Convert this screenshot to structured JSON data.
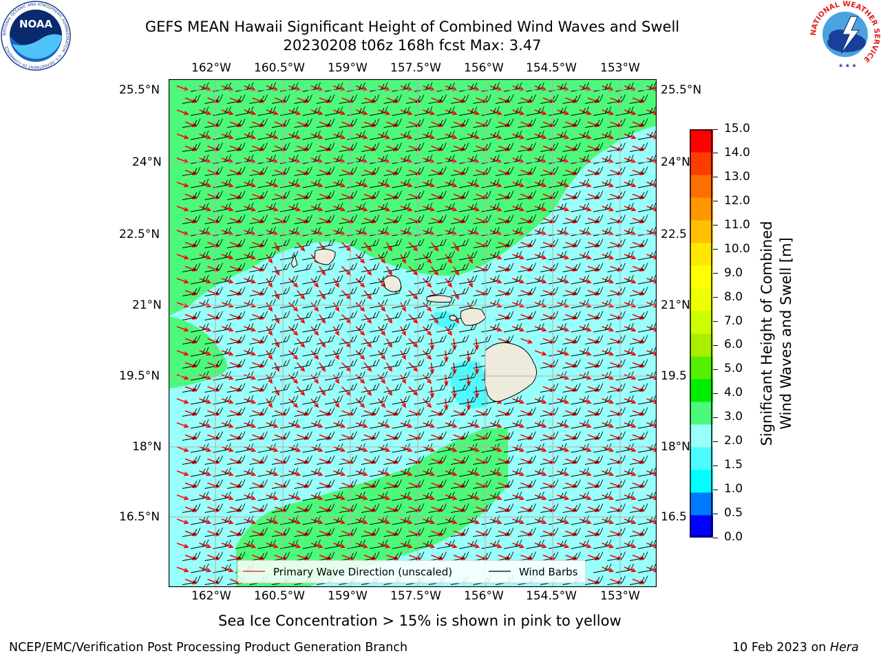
{
  "header": {
    "title_line1": "GEFS MEAN Hawaii Significant Height of Combined Wind Waves and Swell",
    "title_line2": "20230208 t06z 168h fcst   Max: 3.47"
  },
  "logos": {
    "left": {
      "name": "noaa-logo",
      "text": "NOAA",
      "ring": "NATIONAL OCEANIC AND ATMOSPHERIC ADMINISTRATION · U.S. DEPARTMENT OF COMMERCE"
    },
    "right": {
      "name": "nws-logo",
      "ring": "NATIONAL WEATHER SERVICE"
    }
  },
  "map": {
    "lon_labels": [
      "162°W",
      "160.5°W",
      "159°W",
      "157.5°W",
      "156°W",
      "154.5°W",
      "153°W"
    ],
    "lat_labels": [
      "25.5°N",
      "24°N",
      "22.5°N",
      "21°N",
      "19.5°N",
      "18°N",
      "16.5°N"
    ],
    "lat_labels_right": [
      "25.5°N",
      "24°N",
      "22.5",
      "21°N",
      "19.5",
      "18°N",
      "16.5"
    ],
    "colors": {
      "light_cyan": "#99fffa",
      "light_green": "#4df97a",
      "mid_cyan": "#4dfbff",
      "cyan": "#00ffff",
      "land": "#eeeadc",
      "wave_arrow": "#ff0000",
      "barb": "#000000",
      "grid": "#b0b0b0"
    },
    "legend": {
      "wave_label": "Primary Wave Direction (unscaled)",
      "barb_label": "Wind Barbs"
    },
    "islands": [
      "Niihau",
      "Kauai",
      "Oahu",
      "Molokai",
      "Maui",
      "Hawaii"
    ]
  },
  "colorbar": {
    "title_line1": "Significant Height of Combined",
    "title_line2": "Wind Waves and Swell [m]",
    "ticks": [
      "15.0",
      "14.0",
      "13.0",
      "12.0",
      "11.0",
      "10.0",
      "9.0",
      "8.0",
      "7.0",
      "6.0",
      "5.0",
      "4.0",
      "3.0",
      "2.0",
      "1.5",
      "1.0",
      "0.5",
      "0.0"
    ],
    "bands": [
      "#0000ff",
      "#0078ff",
      "#00ffff",
      "#4dfbff",
      "#99fffa",
      "#4df97a",
      "#00ee00",
      "#55f000",
      "#aaee00",
      "#ccff00",
      "#eeff00",
      "#ffff00",
      "#ffe800",
      "#ffc000",
      "#ff9800",
      "#ff6e00",
      "#ff3c00",
      "#ff0000"
    ]
  },
  "notes": {
    "ice": "Sea Ice Concentration > 15% is shown in pink to yellow"
  },
  "footer": {
    "left": "NCEP/EMC/Verification Post Processing Product Generation Branch",
    "right_date": "10 Feb 2023 on ",
    "right_machine": "Hera"
  }
}
